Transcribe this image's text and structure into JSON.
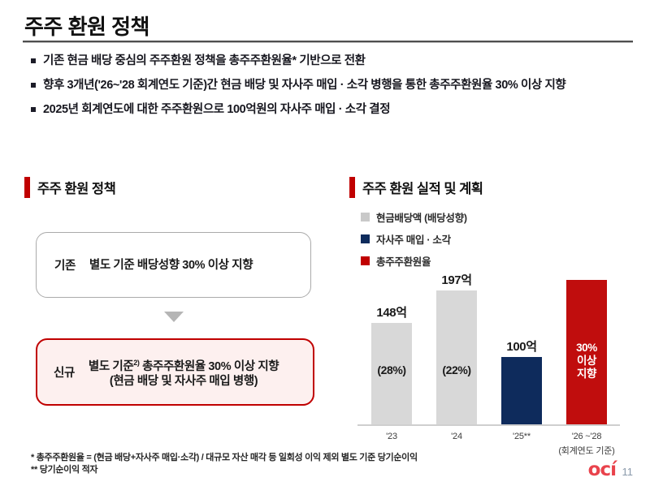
{
  "slide": {
    "title": "주주 환원 정책",
    "page_number": "11",
    "logo_text": "ocí"
  },
  "bullets": [
    "기존 현금 배당 중심의 주주환원 정책을 총주주환원율* 기반으로 전환",
    "향후 3개년('26~'28 회계연도 기준)간 현금 배당 및 자사주 매입 · 소각 병행을 통한 총주주환원율 30% 이상 지향",
    "2025년 회계연도에 대한 주주환원으로 100억원의 자사주 매입 · 소각 결정"
  ],
  "left_panel": {
    "header": "주주 환원 정책",
    "box_old": {
      "label": "기존",
      "text": "별도 기준 배당성향 30% 이상 지향"
    },
    "box_new": {
      "label": "신규",
      "text_pre": "별도 기준",
      "text_sup": "2)",
      "text_post": " 총주주환원율 30% 이상 지향",
      "text_line2": "(현금 배당 및 자사주 매입 병행)"
    }
  },
  "right_panel": {
    "header": "주주 환원 실적 및 계획",
    "legend": [
      {
        "label": "현금배당액 (배당성향)",
        "color": "#c9c9c9"
      },
      {
        "label": "자사주 매입 · 소각",
        "color": "#0e2b5c"
      },
      {
        "label": "총주주환원율",
        "color": "#c00000"
      }
    ],
    "chart_data": {
      "type": "bar",
      "title": "주주 환원 실적 및 계획",
      "unit": "억원",
      "categories": [
        "'23",
        "'24",
        "'25**",
        "'26 ~'28"
      ],
      "category_note": "(회계연도 기준)",
      "legend_position": "top-left",
      "bars": [
        {
          "category": "'23",
          "series": "현금배당액 (배당성향)",
          "value": 148,
          "value_label": "148억",
          "sub_label": "(28%)",
          "color": "#d8d8d8",
          "sub_color": "#1a1a1a"
        },
        {
          "category": "'24",
          "series": "현금배당액 (배당성향)",
          "value": 197,
          "value_label": "197억",
          "sub_label": "(22%)",
          "color": "#d8d8d8",
          "sub_color": "#1a1a1a"
        },
        {
          "category": "'25**",
          "series": "자사주 매입 · 소각",
          "value": 100,
          "value_label": "100억",
          "sub_label": "",
          "color": "#0e2b5c",
          "sub_color": "#1a1a1a"
        },
        {
          "category": "'26 ~'28",
          "series": "총주주환원율",
          "value": null,
          "value_label": "",
          "sub_label": "30%\n이상\n지향",
          "color": "#c00d0d",
          "sub_color": "#ffffff"
        }
      ]
    }
  },
  "footnotes": [
    "* 총주주환원율 = (현금 배당+자사주 매입·소각) / 대규모 자산 매각 등 일회성 이익 제외 별도 기준 당기순이익",
    "** 당기순이익 적자"
  ],
  "colors": {
    "accent_red": "#c00000",
    "bar_red": "#c00d0d",
    "navy": "#0e2b5c",
    "gray_bar": "#d8d8d8"
  }
}
